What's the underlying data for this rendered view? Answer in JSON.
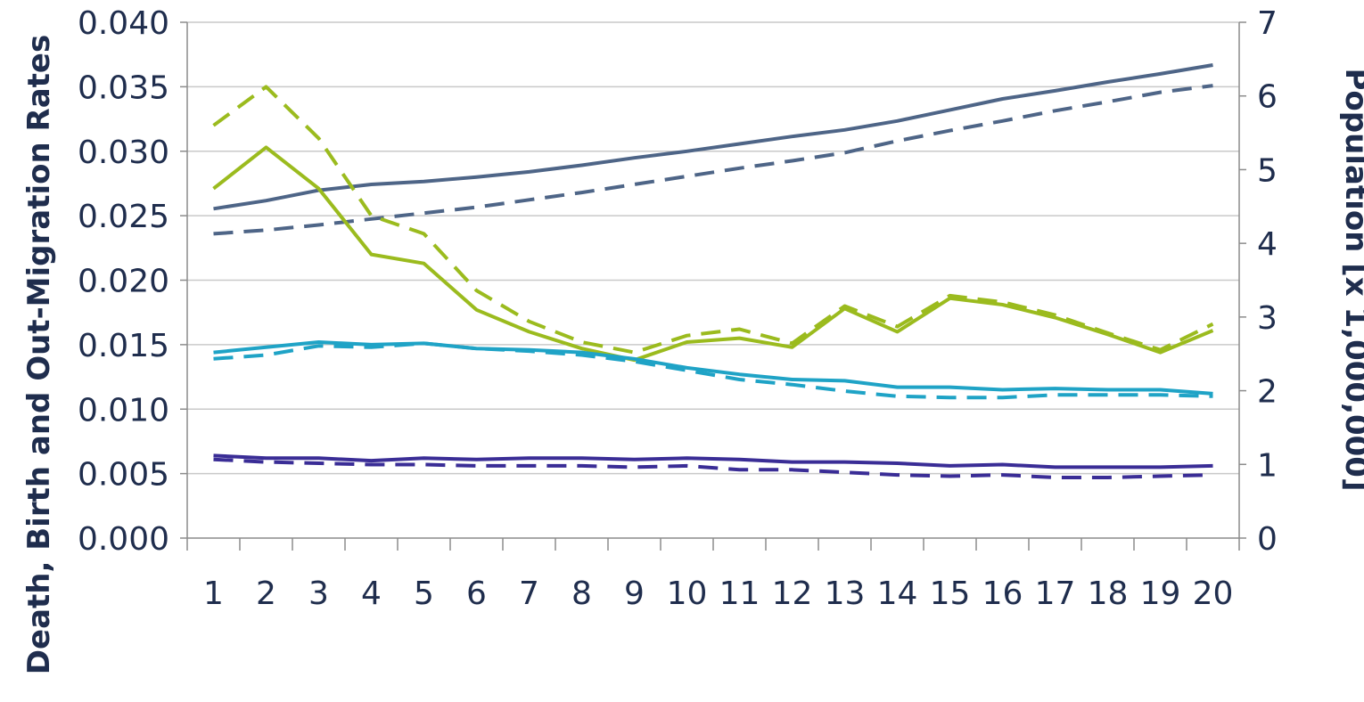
{
  "chart_data": {
    "type": "line",
    "title": "",
    "xlabel": "",
    "ylabel": "Death, Birth and Out-Migration Rates",
    "y2label": "Population [x 1,000,000]",
    "categories": [
      "1",
      "2",
      "3",
      "4",
      "5",
      "6",
      "7",
      "8",
      "9",
      "10",
      "11",
      "12",
      "13",
      "14",
      "15",
      "16",
      "17",
      "18",
      "19",
      "20"
    ],
    "ylim": [
      0,
      0.04
    ],
    "y_ticks": [
      "0.000",
      "0.005",
      "0.010",
      "0.015",
      "0.020",
      "0.025",
      "0.030",
      "0.035",
      "0.040"
    ],
    "y2lim": [
      0,
      7
    ],
    "y2_ticks": [
      "0",
      "1",
      "2",
      "3",
      "4",
      "5",
      "6",
      "7"
    ],
    "grid": "horizontal",
    "legend": "none",
    "colors": {
      "population": "#4e6587",
      "birth": "#9bbb1e",
      "outmigration": "#1fa3c6",
      "death": "#3a2d96",
      "grid": "#c9c9c9",
      "axis": "#8c8c8c"
    },
    "series": [
      {
        "key": "pop_a",
        "axis": "right",
        "style": "solid",
        "color": "population",
        "values": [
          4.47,
          4.58,
          4.72,
          4.8,
          4.84,
          4.9,
          4.97,
          5.06,
          5.16,
          5.25,
          5.35,
          5.45,
          5.54,
          5.66,
          5.81,
          5.96,
          6.07,
          6.19,
          6.3,
          6.42
        ]
      },
      {
        "key": "pop_b",
        "axis": "right",
        "style": "dashed",
        "color": "population",
        "values": [
          4.13,
          4.18,
          4.25,
          4.33,
          4.41,
          4.49,
          4.59,
          4.69,
          4.8,
          4.91,
          5.02,
          5.12,
          5.23,
          5.39,
          5.53,
          5.66,
          5.8,
          5.92,
          6.05,
          6.14
        ]
      },
      {
        "key": "birth_a",
        "axis": "left",
        "style": "solid",
        "color": "birth",
        "values": [
          0.0271,
          0.0303,
          0.0271,
          0.022,
          0.0213,
          0.0177,
          0.016,
          0.0147,
          0.0138,
          0.0152,
          0.0155,
          0.0148,
          0.0178,
          0.016,
          0.0186,
          0.0181,
          0.0171,
          0.0158,
          0.0144,
          0.0161
        ]
      },
      {
        "key": "birth_b",
        "axis": "left",
        "style": "dashed",
        "color": "birth",
        "values": [
          0.032,
          0.035,
          0.031,
          0.025,
          0.0236,
          0.0192,
          0.0168,
          0.0152,
          0.0144,
          0.0157,
          0.0162,
          0.0151,
          0.018,
          0.0164,
          0.0188,
          0.0183,
          0.0173,
          0.0159,
          0.0146,
          0.0166
        ]
      },
      {
        "key": "out_a",
        "axis": "left",
        "style": "solid",
        "color": "outmigration",
        "values": [
          0.0144,
          0.0148,
          0.0152,
          0.015,
          0.0151,
          0.0147,
          0.0146,
          0.0144,
          0.0139,
          0.0132,
          0.0127,
          0.0123,
          0.0122,
          0.0117,
          0.0117,
          0.0115,
          0.0116,
          0.0115,
          0.0115,
          0.0112
        ]
      },
      {
        "key": "out_b",
        "axis": "left",
        "style": "dashed",
        "color": "outmigration",
        "values": [
          0.0139,
          0.0142,
          0.0149,
          0.0148,
          0.0151,
          0.0147,
          0.0145,
          0.0142,
          0.0137,
          0.013,
          0.0123,
          0.0119,
          0.0114,
          0.011,
          0.0109,
          0.0109,
          0.0111,
          0.0111,
          0.0111,
          0.011
        ]
      },
      {
        "key": "death_a",
        "axis": "left",
        "style": "solid",
        "color": "death",
        "values": [
          0.0064,
          0.0062,
          0.0062,
          0.006,
          0.0062,
          0.0061,
          0.0062,
          0.0062,
          0.0061,
          0.0062,
          0.0061,
          0.0059,
          0.0059,
          0.0058,
          0.0056,
          0.0057,
          0.0055,
          0.0055,
          0.0055,
          0.0056
        ]
      },
      {
        "key": "death_b",
        "axis": "left",
        "style": "dashed",
        "color": "death",
        "values": [
          0.0061,
          0.0059,
          0.0058,
          0.0057,
          0.0057,
          0.0056,
          0.0056,
          0.0056,
          0.0055,
          0.0056,
          0.0053,
          0.0053,
          0.0051,
          0.0049,
          0.0048,
          0.0049,
          0.0047,
          0.0047,
          0.0048,
          0.0049
        ]
      }
    ]
  }
}
